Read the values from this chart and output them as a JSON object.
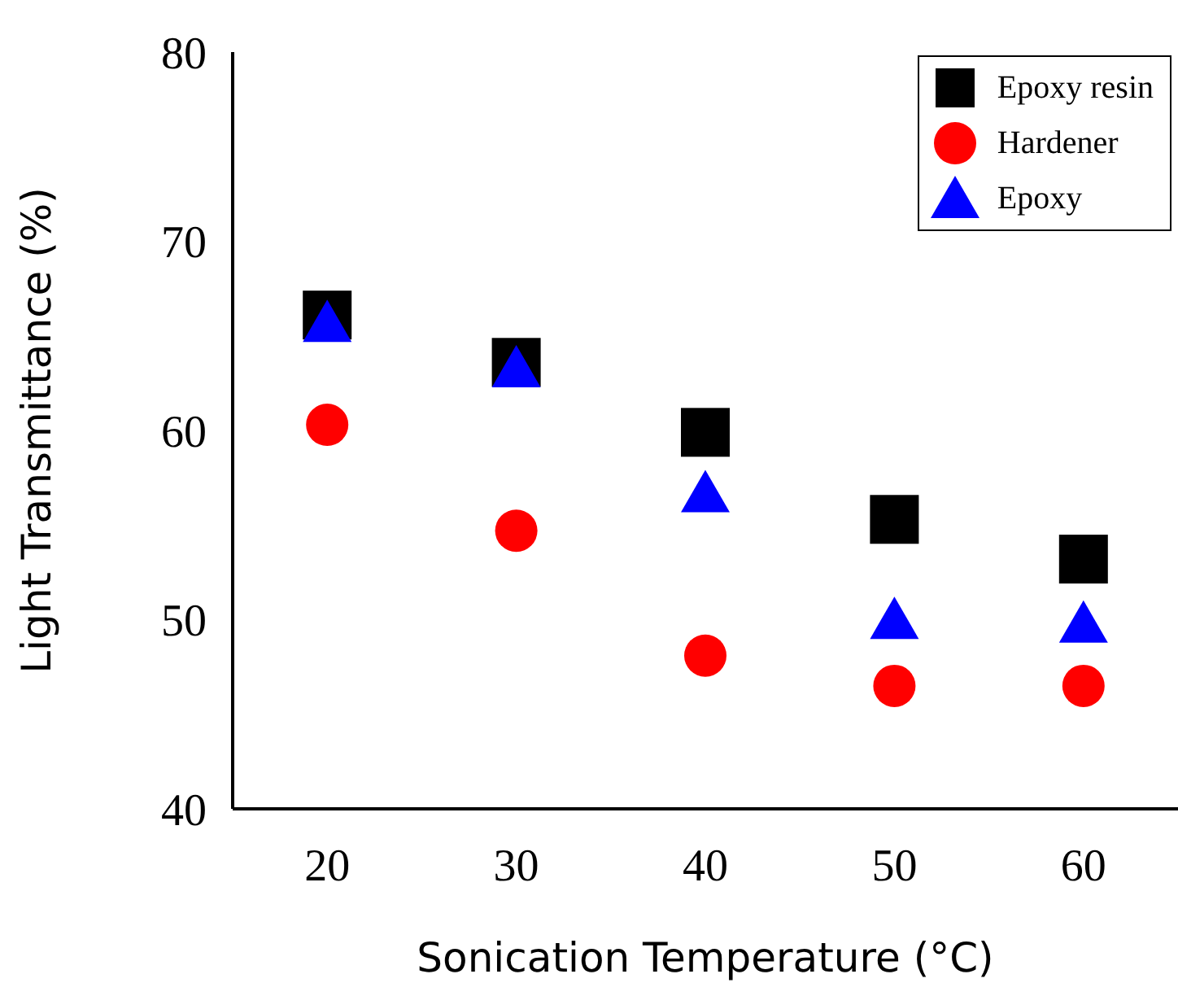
{
  "chart_data": {
    "type": "scatter",
    "xlabel": "Sonication Temperature (°C)",
    "ylabel": "Light Transmittance (%)",
    "x": [
      20,
      30,
      40,
      50,
      60
    ],
    "xlim": [
      15,
      65
    ],
    "xticks": [
      20,
      30,
      40,
      50,
      60
    ],
    "ylim": [
      40,
      80
    ],
    "yticks": [
      40,
      50,
      60,
      70,
      80
    ],
    "grid": false,
    "legend": "top right",
    "series": [
      {
        "name": "Epoxy resin",
        "color": "#000000",
        "marker": "square",
        "values": [
          66.1,
          63.6,
          59.9,
          55.3,
          53.2
        ]
      },
      {
        "name": "Hardener",
        "color": "#ff0000",
        "marker": "circle",
        "values": [
          60.3,
          54.7,
          48.1,
          46.5,
          46.5
        ]
      },
      {
        "name": "Epoxy",
        "color": "#0000ff",
        "marker": "triangle",
        "values": [
          65.8,
          63.4,
          56.8,
          50.1,
          49.9
        ]
      }
    ]
  }
}
